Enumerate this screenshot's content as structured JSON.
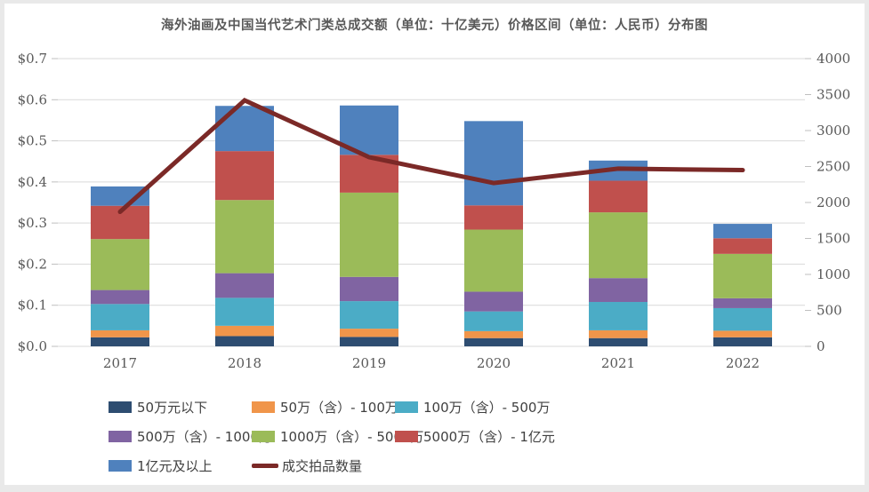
{
  "title": "海外油画及中国当代艺术门类总成交额（单位：十亿美元）价格区间（单位：人民币）分布图",
  "colors": {
    "panel_background": "#ffffff",
    "frame_background": "#e9e9e9",
    "gridline": "#d9d9d9",
    "tick": "#bfbfbf",
    "axis_text": "#595959",
    "legend_text": "#404040",
    "title_text": "#595959"
  },
  "chart_data": {
    "type": "bar",
    "subtype": "stacked-bars-with-line-overlay",
    "title": "海外油画及中国当代艺术门类总成交额（单位：十亿美元）价格区间（单位：人民币）分布图",
    "categories": [
      "2017",
      "2018",
      "2019",
      "2020",
      "2021",
      "2022"
    ],
    "series": [
      {
        "name": "50万元以下",
        "color": "#2e4d71",
        "values": [
          0.022,
          0.025,
          0.023,
          0.02,
          0.02,
          0.022
        ]
      },
      {
        "name": "50万（含）- 100万",
        "color": "#f0954a",
        "values": [
          0.017,
          0.025,
          0.02,
          0.017,
          0.019,
          0.016
        ]
      },
      {
        "name": "100万（含）- 500万",
        "color": "#4bacc6",
        "values": [
          0.064,
          0.068,
          0.067,
          0.048,
          0.069,
          0.055
        ]
      },
      {
        "name": "500万（含）- 1000万",
        "color": "#8064a2",
        "values": [
          0.034,
          0.06,
          0.059,
          0.048,
          0.058,
          0.024
        ]
      },
      {
        "name": "1000万（含）- 5000万",
        "color": "#9bbb59",
        "values": [
          0.124,
          0.178,
          0.205,
          0.151,
          0.16,
          0.108
        ]
      },
      {
        "name": "5000万（含）- 1亿元",
        "color": "#c0504d",
        "values": [
          0.081,
          0.119,
          0.092,
          0.059,
          0.077,
          0.038
        ]
      },
      {
        "name": "1亿元及以上",
        "color": "#4f81bd",
        "values": [
          0.047,
          0.11,
          0.12,
          0.205,
          0.049,
          0.035
        ]
      }
    ],
    "line_series": {
      "name": "成交拍品数量",
      "color": "#7b2927",
      "values": [
        1870,
        3420,
        2630,
        2270,
        2470,
        2450
      ]
    },
    "left_axis": {
      "min": 0,
      "max": 0.7,
      "step": 0.1,
      "unit": "十亿美元",
      "tick_labels": [
        "$0.0",
        "$0.1",
        "$0.2",
        "$0.3",
        "$0.4",
        "$0.5",
        "$0.6",
        "$0.7"
      ]
    },
    "right_axis": {
      "min": 0,
      "max": 4000,
      "step": 500,
      "tick_labels": [
        "0",
        "500",
        "1000",
        "1500",
        "2000",
        "2500",
        "3000",
        "3500",
        "4000"
      ]
    },
    "grid": true,
    "legend_position": "bottom"
  }
}
